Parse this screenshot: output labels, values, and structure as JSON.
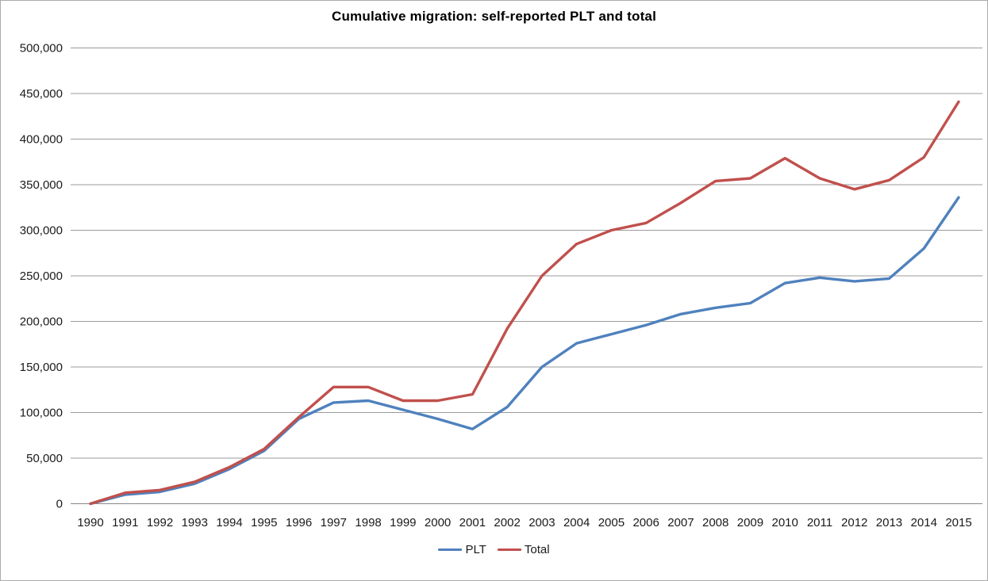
{
  "chart_data": {
    "type": "line",
    "title": "Cumulative migration: self-reported PLT and total",
    "xlabel": "",
    "ylabel": "",
    "ylim": [
      0,
      500000
    ],
    "ytick_step": 50000,
    "grid": true,
    "legend_position": "bottom",
    "categories": [
      "1990",
      "1991",
      "1992",
      "1993",
      "1994",
      "1995",
      "1996",
      "1997",
      "1998",
      "1999",
      "2000",
      "2001",
      "2002",
      "2003",
      "2004",
      "2005",
      "2006",
      "2007",
      "2008",
      "2009",
      "2010",
      "2011",
      "2012",
      "2013",
      "2014",
      "2015"
    ],
    "series": [
      {
        "name": "PLT",
        "color": "#4F81BD",
        "values": [
          0,
          10000,
          13000,
          22000,
          38000,
          58000,
          93000,
          111000,
          113000,
          103000,
          93000,
          82000,
          106000,
          150000,
          176000,
          186000,
          196000,
          208000,
          215000,
          220000,
          242000,
          248000,
          244000,
          247000,
          280000,
          336000
        ]
      },
      {
        "name": "Total",
        "color": "#C0504D",
        "values": [
          0,
          12000,
          15000,
          24000,
          40000,
          60000,
          95000,
          128000,
          128000,
          113000,
          113000,
          120000,
          192000,
          250000,
          285000,
          300000,
          308000,
          330000,
          354000,
          357000,
          379000,
          357000,
          345000,
          355000,
          380000,
          441000
        ]
      }
    ],
    "colors": {
      "gridline": "#9b9b9b",
      "axis_line": "#888888",
      "tick_text": "#1a1a1a",
      "frame_border": "#ababab"
    }
  }
}
